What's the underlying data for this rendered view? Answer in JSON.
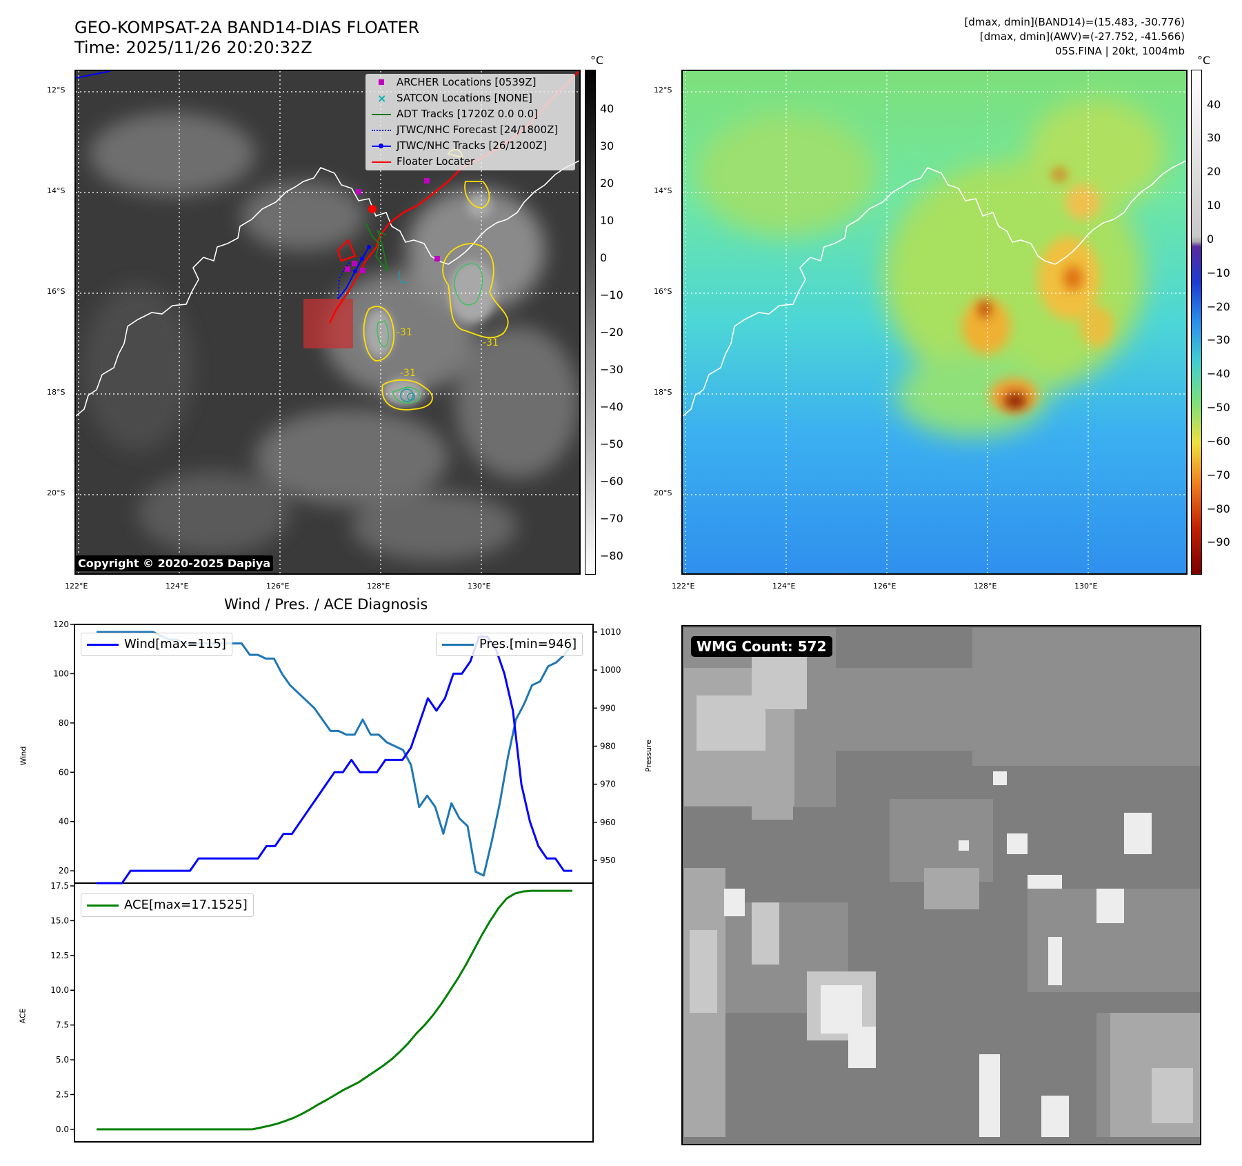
{
  "header": {
    "title_line1": "GEO-KOMPSAT-2A BAND14-DIAS FLOATER",
    "title_line2": "Time: 2025/11/26 20:20:32Z",
    "info_line1": "[dmax, dmin](BAND14)=(15.483, -30.776)",
    "info_line2": "[dmax, dmin](AWV)=(-27.752, -41.566)",
    "info_line3": "05S.FINA | 20kt, 1004mb"
  },
  "map_axes": {
    "lat_labels": [
      "12°S",
      "14°S",
      "16°S",
      "18°S",
      "20°S"
    ],
    "lon_labels": [
      "122°E",
      "124°E",
      "126°E",
      "128°E",
      "130°E"
    ]
  },
  "ir_panel": {
    "colorbar_unit": "°C",
    "colorbar_ticks": [
      "40",
      "30",
      "20",
      "10",
      "0",
      "−10",
      "−20",
      "−30",
      "−40",
      "−50",
      "−60",
      "−70",
      "−80"
    ],
    "legend": [
      {
        "label": "ARCHER Locations [0539Z]",
        "icon": "magenta-square-marker",
        "color": "#c000c0"
      },
      {
        "label": "SATCON Locations [NONE]",
        "icon": "cyan-x-marker",
        "color": "#00b0b0"
      },
      {
        "label": "ADT Tracks [1720Z 0.0 0.0]",
        "icon": "green-line",
        "color": "#1a7a1a"
      },
      {
        "label": "JTWC/NHC Forecast [24/1800Z]",
        "icon": "blue-dotted-line",
        "color": "#0000ff"
      },
      {
        "label": "JTWC/NHC Tracks [26/1200Z]",
        "icon": "blue-line-dot",
        "color": "#0000ff"
      },
      {
        "label": "Floater Locater",
        "icon": "red-line",
        "color": "#ff0000"
      }
    ],
    "contour_labels": [
      "-31",
      "-31",
      "-31"
    ],
    "copyright": "Copyright © 2020-2025 Dapiya"
  },
  "awv_panel": {
    "colorbar_unit": "°C",
    "colorbar_ticks": [
      "40",
      "30",
      "20",
      "10",
      "0",
      "−10",
      "−20",
      "−30",
      "−40",
      "−50",
      "−60",
      "−70",
      "−80",
      "−90"
    ]
  },
  "diagnosis": {
    "title": "Wind / Pres. / ACE Diagnosis",
    "wind_ylabel": "Wind",
    "pres_ylabel": "Pressure",
    "ace_ylabel": "ACE",
    "wind_legend": "Wind[max=115]",
    "pres_legend": "Pres.[min=946]",
    "ace_legend": "ACE[max=17.1525]",
    "wind_color": "#0000ff",
    "pres_color": "#1f77b4",
    "ace_color": "#008000"
  },
  "wmg_panel": {
    "label": "WMG Count: 572"
  },
  "chart_data": [
    {
      "type": "line",
      "title": "Wind / Pres. / ACE Diagnosis",
      "ylabel": "Wind",
      "ylim": [
        15,
        120
      ],
      "yticks": [
        20,
        40,
        60,
        80,
        100,
        120
      ],
      "series": [
        {
          "name": "Wind[max=115]",
          "values": [
            15,
            15,
            15,
            15,
            20,
            20,
            20,
            20,
            20,
            20,
            20,
            20,
            25,
            25,
            25,
            25,
            25,
            25,
            25,
            25,
            30,
            30,
            35,
            35,
            40,
            45,
            50,
            55,
            60,
            60,
            65,
            60,
            60,
            60,
            65,
            65,
            65,
            70,
            80,
            90,
            85,
            90,
            100,
            100,
            105,
            115,
            115,
            110,
            100,
            85,
            55,
            40,
            30,
            25,
            25,
            20,
            20
          ]
        }
      ]
    },
    {
      "type": "line",
      "ylabel": "Pressure",
      "ylim": [
        944,
        1012
      ],
      "yticks": [
        950,
        960,
        970,
        980,
        990,
        1000,
        1010
      ],
      "series": [
        {
          "name": "Pres.[min=946]",
          "values": [
            1010,
            1010,
            1010,
            1010,
            1010,
            1010,
            1010,
            1010,
            1009,
            1008,
            1008,
            1007,
            1007,
            1007,
            1007,
            1007,
            1007,
            1007,
            1007,
            1004,
            1004,
            1003,
            1003,
            999,
            996,
            994,
            992,
            990,
            987,
            984,
            984,
            983,
            983,
            987,
            983,
            983,
            981,
            980,
            979,
            975,
            964,
            967,
            964,
            957,
            965,
            961,
            959,
            947,
            946,
            955,
            965,
            977,
            987,
            991,
            996,
            997,
            1001,
            1002,
            1004,
            1007
          ]
        }
      ]
    },
    {
      "type": "line",
      "ylabel": "ACE",
      "ylim": [
        -0.9,
        17.7
      ],
      "yticks": [
        0.0,
        2.5,
        5.0,
        7.5,
        10.0,
        12.5,
        15.0,
        17.5
      ],
      "series": [
        {
          "name": "ACE[max=17.1525]",
          "values": [
            0,
            0,
            0,
            0,
            0,
            0,
            0,
            0,
            0,
            0,
            0,
            0,
            0,
            0,
            0,
            0,
            0,
            0,
            0,
            0,
            0.12,
            0.25,
            0.4,
            0.6,
            0.82,
            1.1,
            1.42,
            1.78,
            2.1,
            2.45,
            2.8,
            3.1,
            3.4,
            3.8,
            4.2,
            4.6,
            5.05,
            5.6,
            6.2,
            6.9,
            7.5,
            8.2,
            9.0,
            9.9,
            10.8,
            11.8,
            12.9,
            14.0,
            15.0,
            15.9,
            16.6,
            16.95,
            17.1,
            17.15,
            17.15,
            17.15,
            17.15,
            17.15,
            17.15
          ]
        }
      ]
    }
  ]
}
